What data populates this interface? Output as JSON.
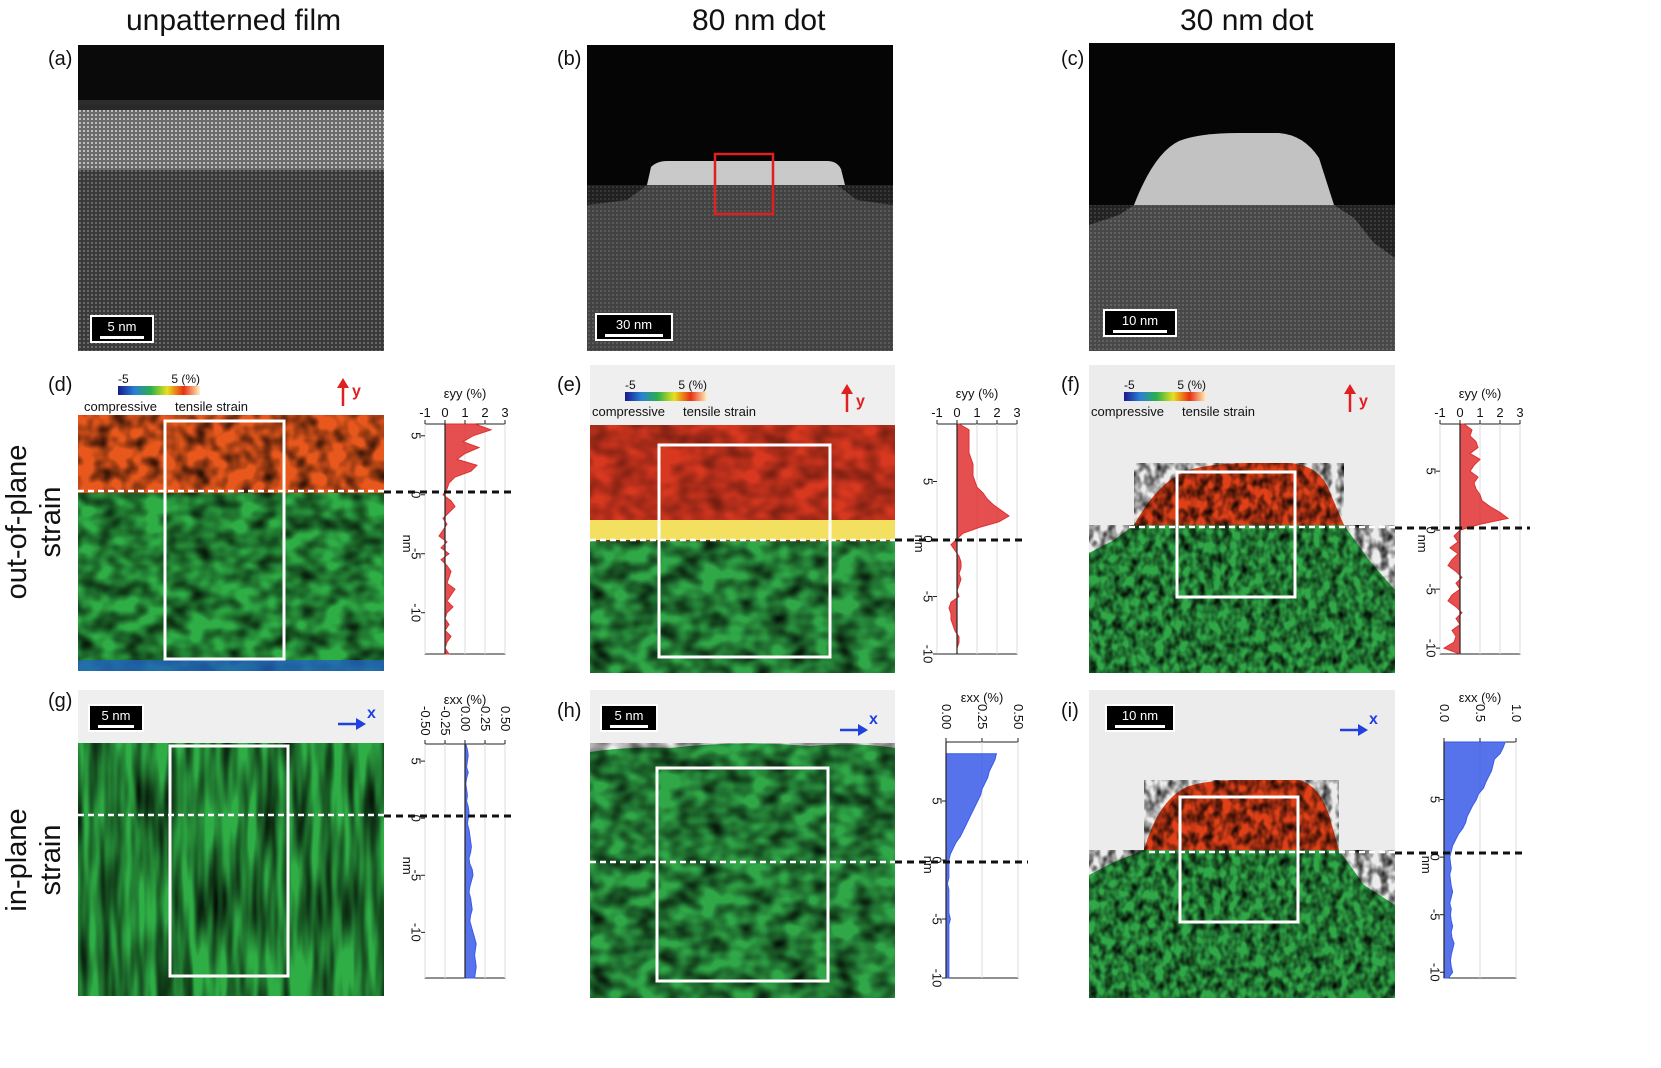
{
  "column_titles": [
    "unpatterned film",
    "80 nm dot",
    "30 nm dot"
  ],
  "row_titles": {
    "out_of_plane": "out-of-plane\nstrain",
    "in_plane": "in-plane\nstrain"
  },
  "panel_labels": [
    "(a)",
    "(b)",
    "(c)",
    "(d)",
    "(e)",
    "(f)",
    "(g)",
    "(h)",
    "(i)"
  ],
  "scale_bars": {
    "a": "5 nm",
    "b": "30 nm",
    "c": "10 nm",
    "g": "5 nm",
    "h": "5 nm",
    "i": "10 nm"
  },
  "colorbar": {
    "min": "-5",
    "max": "5 (%)",
    "left": "compressive",
    "right": "tensile strain"
  },
  "direction_labels": {
    "y": "y",
    "x": "x"
  },
  "profile_axes": {
    "eyy_label": "εyy (%)",
    "exx_label": "εxx (%)",
    "y_unit": "nm"
  },
  "chart_data": [
    {
      "type": "area",
      "panel": "d",
      "xlabel": "εyy (%)",
      "ylabel": "nm",
      "xticks": [
        "-1",
        "0",
        "1",
        "2",
        "3"
      ],
      "xlim": [
        -1,
        3
      ],
      "yticks": [
        "5",
        "0",
        "-5",
        "-10"
      ],
      "ylim": [
        -13.5,
        6
      ],
      "y": [
        6,
        5.5,
        5,
        4.5,
        4,
        3.5,
        3,
        2.5,
        2,
        1.5,
        1,
        0.5,
        0,
        -0.5,
        -1,
        -1.5,
        -2,
        -2.5,
        -3,
        -3.5,
        -4,
        -4.5,
        -5,
        -5.5,
        -6,
        -6.5,
        -7,
        -7.5,
        -8,
        -8.5,
        -9,
        -9.5,
        -10,
        -10.5,
        -11,
        -11.5,
        -12,
        -12.5,
        -13,
        -13.5
      ],
      "values": [
        1.5,
        2.3,
        1.4,
        0.9,
        1.7,
        1.0,
        0.6,
        1.6,
        1.3,
        0.5,
        0.2,
        0.1,
        -0.1,
        0.3,
        0.5,
        0.2,
        -0.1,
        0.1,
        -0.1,
        -0.3,
        0.1,
        -0.2,
        0.2,
        -0.2,
        0.1,
        0.3,
        0.2,
        0.1,
        0.5,
        0.3,
        0.1,
        0.4,
        0.1,
        0.0,
        0.2,
        0.0,
        0.3,
        0.1,
        0.0,
        0.2
      ],
      "color": "#e03030"
    },
    {
      "type": "area",
      "panel": "e",
      "xlabel": "εyy (%)",
      "ylabel": "nm",
      "xticks": [
        "-1",
        "0",
        "1",
        "2",
        "3"
      ],
      "xlim": [
        -1,
        3
      ],
      "yticks": [
        "5",
        "0",
        "-5",
        "-10"
      ],
      "ylim": [
        -10,
        10
      ],
      "y": [
        10,
        9.5,
        9,
        8.5,
        8,
        7.5,
        7,
        6.5,
        6,
        5.5,
        5,
        4.5,
        4,
        3.5,
        3,
        2.5,
        2,
        1.5,
        1,
        0.5,
        0,
        -0.5,
        -1,
        -1.5,
        -2,
        -2.5,
        -3,
        -3.5,
        -4,
        -4.5,
        -5,
        -5.5,
        -6,
        -6.5,
        -7,
        -7.5,
        -8,
        -8.5,
        -9,
        -9.5,
        -10
      ],
      "values": [
        0.1,
        0.6,
        0.6,
        0.6,
        0.6,
        0.6,
        0.7,
        0.8,
        0.8,
        0.8,
        0.9,
        1.0,
        1.3,
        1.5,
        1.8,
        2.2,
        2.6,
        2.1,
        1.1,
        0.3,
        0.0,
        -0.3,
        -0.1,
        0.1,
        0.2,
        0.2,
        0.1,
        0.2,
        0.1,
        0.0,
        0.1,
        -0.3,
        -0.4,
        -0.3,
        -0.3,
        -0.2,
        -0.1,
        0.1,
        0.1,
        0.0,
        0.0
      ],
      "color": "#e03030"
    },
    {
      "type": "area",
      "panel": "f",
      "xlabel": "εyy (%)",
      "ylabel": "nm",
      "xticks": [
        "-1",
        "0",
        "1",
        "2",
        "3"
      ],
      "xlim": [
        -1,
        3
      ],
      "yticks": [
        "5",
        "0",
        "-5",
        "-10"
      ],
      "ylim": [
        -10.5,
        9
      ],
      "y": [
        9,
        8.5,
        8,
        7.5,
        7,
        6.5,
        6,
        5.5,
        5,
        4.5,
        4,
        3.5,
        3,
        2.5,
        2,
        1.5,
        1,
        0.5,
        0,
        -0.5,
        -1,
        -1.5,
        -2,
        -2.5,
        -3,
        -3.5,
        -4,
        -4.5,
        -5,
        -5.5,
        -6,
        -6.5,
        -7,
        -7.5,
        -8,
        -8.5,
        -9,
        -9.5,
        -10,
        -10.5
      ],
      "values": [
        0.2,
        0.6,
        0.5,
        0.8,
        0.9,
        0.5,
        1.0,
        0.7,
        0.5,
        0.9,
        0.7,
        0.8,
        1.0,
        1.1,
        1.5,
        2.0,
        2.4,
        1.0,
        0.0,
        -0.3,
        -0.1,
        -0.5,
        -0.1,
        -0.4,
        -0.6,
        -0.2,
        0.1,
        -0.2,
        0.0,
        -0.4,
        -0.6,
        -0.2,
        0.1,
        -0.2,
        0.0,
        -0.4,
        -0.2,
        -0.3,
        -0.8,
        0.0
      ],
      "color": "#e03030"
    },
    {
      "type": "area",
      "panel": "g",
      "xlabel": "εxx (%)",
      "ylabel": "nm",
      "xticks": [
        "-0.50",
        "-0.25",
        "0.00",
        "0.25",
        "0.50"
      ],
      "xlim": [
        -0.5,
        0.5
      ],
      "yticks": [
        "5",
        "0",
        "-5",
        "-10"
      ],
      "ylim": [
        -14,
        6.5
      ],
      "y": [
        6.5,
        6,
        5.5,
        5,
        4.5,
        4,
        3.5,
        3,
        2.5,
        2,
        1.5,
        1,
        0.5,
        0,
        -0.5,
        -1,
        -1.5,
        -2,
        -2.5,
        -3,
        -3.5,
        -4,
        -4.5,
        -5,
        -5.5,
        -6,
        -6.5,
        -7,
        -7.5,
        -8,
        -8.5,
        -9,
        -9.5,
        -10,
        -10.5,
        -11,
        -11.5,
        -12,
        -12.5,
        -13,
        -13.5,
        -14
      ],
      "values": [
        0.01,
        0.03,
        0.04,
        0.03,
        0.02,
        0.04,
        0.02,
        0.01,
        0.02,
        0.03,
        0.02,
        0.04,
        0.05,
        0.04,
        0.03,
        0.05,
        0.06,
        0.07,
        0.08,
        0.07,
        0.05,
        0.06,
        0.09,
        0.1,
        0.08,
        0.06,
        0.05,
        0.07,
        0.08,
        0.09,
        0.07,
        0.06,
        0.08,
        0.1,
        0.12,
        0.14,
        0.13,
        0.12,
        0.13,
        0.14,
        0.13,
        0.12
      ],
      "color": "#3a5ae8"
    },
    {
      "type": "area",
      "panel": "h",
      "xlabel": "εxx (%)",
      "ylabel": "nm",
      "xticks": [
        "0.00",
        "0.25",
        "0.50"
      ],
      "xlim": [
        0,
        0.5
      ],
      "yticks": [
        "5",
        "0",
        "-5",
        "-10"
      ],
      "ylim": [
        -10,
        10
      ],
      "y": [
        9,
        8.5,
        8,
        7.5,
        7,
        6.5,
        6,
        5.5,
        5,
        4.5,
        4,
        3.5,
        3,
        2.5,
        2,
        1.5,
        1,
        0.5,
        0,
        -0.5,
        -1,
        -1.5,
        -2,
        -2.5,
        -3,
        -3.5,
        -4,
        -4.5,
        -5,
        -5.5,
        -6,
        -6.5,
        -7,
        -7.5,
        -8,
        -8.5,
        -9,
        -9.5,
        -10
      ],
      "values": [
        0.35,
        0.34,
        0.32,
        0.3,
        0.29,
        0.27,
        0.25,
        0.24,
        0.22,
        0.2,
        0.18,
        0.16,
        0.14,
        0.12,
        0.1,
        0.07,
        0.05,
        0.03,
        0.02,
        0.02,
        0.02,
        0.02,
        0.01,
        0.02,
        0.02,
        0.02,
        0.02,
        0.02,
        0.03,
        0.02,
        0.02,
        0.02,
        0.02,
        0.02,
        0.02,
        0.02,
        0.02,
        0.02,
        0.02
      ],
      "color": "#3a5ae8"
    },
    {
      "type": "area",
      "panel": "i",
      "xlabel": "εxx (%)",
      "ylabel": "nm",
      "xticks": [
        "0.0",
        "0.5",
        "1.0"
      ],
      "xlim": [
        0,
        1
      ],
      "yticks": [
        "5",
        "0",
        "-5",
        "-10"
      ],
      "ylim": [
        -10.5,
        10
      ],
      "y": [
        10,
        9.5,
        9,
        8.5,
        8,
        7.5,
        7,
        6.5,
        6,
        5.5,
        5,
        4.5,
        4,
        3.5,
        3,
        2.5,
        2,
        1.5,
        1,
        0.5,
        0,
        -0.5,
        -1,
        -1.5,
        -2,
        -2.5,
        -3,
        -3.5,
        -4,
        -4.5,
        -5,
        -5.5,
        -6,
        -6.5,
        -7,
        -7.5,
        -8,
        -8.5,
        -9,
        -9.5,
        -10,
        -10.5
      ],
      "values": [
        0.85,
        0.82,
        0.78,
        0.7,
        0.68,
        0.66,
        0.62,
        0.58,
        0.55,
        0.48,
        0.45,
        0.4,
        0.36,
        0.32,
        0.3,
        0.26,
        0.2,
        0.16,
        0.12,
        0.1,
        0.08,
        0.09,
        0.1,
        0.08,
        0.09,
        0.1,
        0.12,
        0.1,
        0.08,
        0.1,
        0.09,
        0.1,
        0.12,
        0.1,
        0.11,
        0.14,
        0.12,
        0.1,
        0.09,
        0.1,
        0.12,
        0.06
      ],
      "color": "#3a5ae8"
    }
  ]
}
